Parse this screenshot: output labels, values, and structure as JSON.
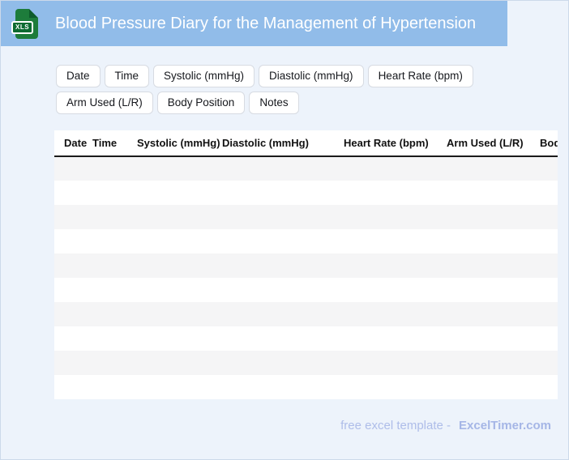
{
  "header": {
    "title": "Blood Pressure Diary for the Management of Hypertension",
    "icon_label": "XLS"
  },
  "chips": [
    "Date",
    "Time",
    "Systolic (mmHg)",
    "Diastolic (mmHg)",
    "Heart Rate (bpm)",
    "Arm Used (L/R)",
    "Body Position",
    "Notes"
  ],
  "table": {
    "columns": [
      "Date",
      "Time",
      "Systolic (mmHg)",
      "Diastolic (mmHg)",
      "Heart Rate (bpm)",
      "Arm Used (L/R)",
      "Body Position"
    ],
    "row_count": 10,
    "rows": []
  },
  "footer": {
    "text": "free excel template -",
    "brand": "ExcelTimer.com"
  },
  "colors": {
    "band_blue": "#91bce9",
    "page_background": "#edf3fb",
    "icon_green": "#1d7c3b",
    "badge_green": "#0c6b31",
    "stripe_gray": "#f5f5f6",
    "header_underline": "#1b1b1b",
    "footer_text": "#aebde9"
  }
}
